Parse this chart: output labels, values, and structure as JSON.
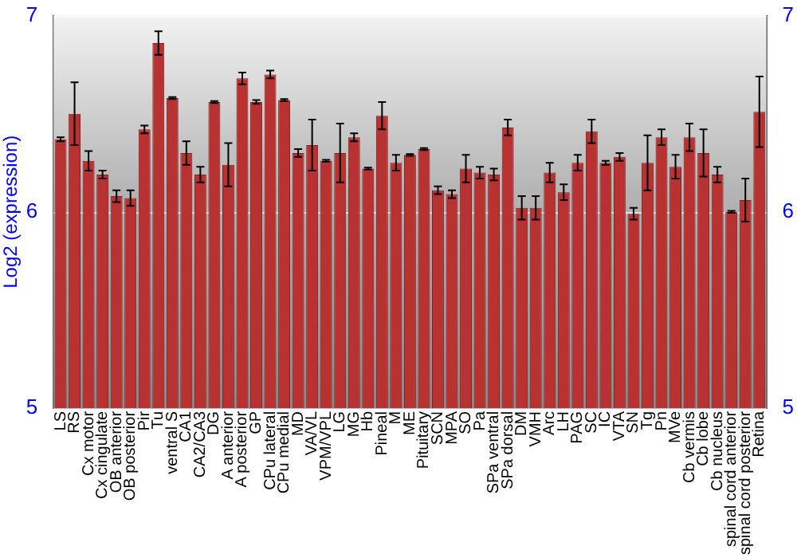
{
  "chart_data": {
    "type": "bar",
    "ylabel": "Log2 (expression)",
    "categories": [
      "LS",
      "RS",
      "Cx motor",
      "Cx cingulate",
      "OB anterior",
      "OB posterior",
      "Pir",
      "Tu",
      "ventral S",
      "CA1",
      "CA2/CA3",
      "DG",
      "A anterior",
      "A posterior",
      "GP",
      "CPu lateral",
      "CPu medial",
      "MD",
      "VA/VL",
      "VPM/VPL",
      "LG",
      "MG",
      "Hb",
      "Pineal",
      "M",
      "ME",
      "Pituitary",
      "SCN",
      "MPA",
      "SO",
      "Pa",
      "SPa ventral",
      "SPa dorsal",
      "DM",
      "VMH",
      "Arc",
      "LH",
      "PAG",
      "SC",
      "IC",
      "VTA",
      "SN",
      "Tg",
      "Pn",
      "MVe",
      "Cb vermis",
      "Cb lobe",
      "Cb nucleus",
      "spinal cord anterior",
      "spinal cord posterior",
      "Retina"
    ],
    "values": [
      6.37,
      6.5,
      6.26,
      6.19,
      6.08,
      6.07,
      6.42,
      6.86,
      6.58,
      6.3,
      6.19,
      6.56,
      6.24,
      6.68,
      6.56,
      6.7,
      6.57,
      6.3,
      6.34,
      6.26,
      6.3,
      6.38,
      6.22,
      6.49,
      6.25,
      6.29,
      6.32,
      6.11,
      6.09,
      6.22,
      6.2,
      6.19,
      6.43,
      6.02,
      6.02,
      6.2,
      6.1,
      6.25,
      6.41,
      6.25,
      6.28,
      5.99,
      6.25,
      6.38,
      6.23,
      6.38,
      6.3,
      6.19,
      6,
      6.06,
      6.51
    ],
    "errors": [
      0.01,
      0.16,
      0.05,
      0.02,
      0.03,
      0.04,
      0.02,
      0.06,
      0.005,
      0.06,
      0.04,
      0.005,
      0.11,
      0.03,
      0.01,
      0.02,
      0.005,
      0.02,
      0.13,
      0.005,
      0.15,
      0.02,
      0.005,
      0.07,
      0.04,
      0.005,
      0.005,
      0.02,
      0.02,
      0.07,
      0.03,
      0.03,
      0.04,
      0.06,
      0.06,
      0.05,
      0.04,
      0.04,
      0.06,
      0.01,
      0.02,
      0.03,
      0.14,
      0.04,
      0.06,
      0.07,
      0.12,
      0.04,
      0.005,
      0.11,
      0.18
    ],
    "color": "#b83232",
    "ylim": [
      5,
      7
    ],
    "yticks": [
      5,
      6,
      7
    ],
    "y2lim": [
      5,
      7
    ],
    "y2ticks": [
      5,
      6,
      7
    ],
    "grid": "y",
    "legend": false
  }
}
